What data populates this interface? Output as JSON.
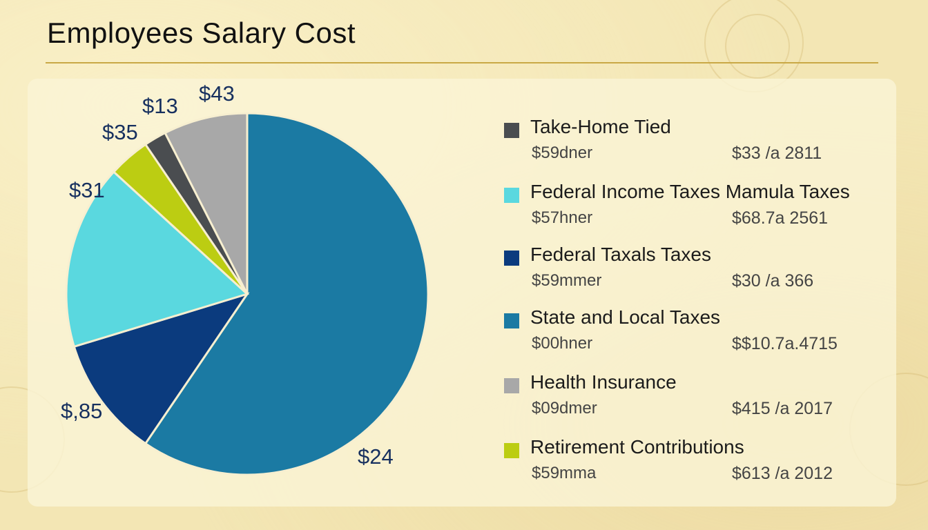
{
  "chart_data": {
    "type": "pie",
    "title": "Employees Salary Cost",
    "slices": [
      {
        "label": "$24",
        "value": 59.5,
        "color": "#1b7aa3"
      },
      {
        "label": "$,85",
        "value": 10.8,
        "color": "#0b3b7e"
      },
      {
        "label": "$31",
        "value": 16.5,
        "color": "#5ad8df"
      },
      {
        "label": "$35",
        "value": 3.7,
        "color": "#bccd12"
      },
      {
        "label": "$13",
        "value": 2.0,
        "color": "#4a4d50"
      },
      {
        "label": "$43",
        "value": 7.5,
        "color": "#a8a8a8"
      }
    ],
    "legend": {
      "position": "right",
      "items": [
        {
          "name": "Take-Home Tied",
          "value1": "$59dner",
          "value2": "$33 /a 2811",
          "color": "#4a4d50"
        },
        {
          "name": "Federal Income Taxes Mamula Taxes",
          "value1": "$57hner",
          "value2": "$68.7a 2561",
          "color": "#5ad8df"
        },
        {
          "name": "Federal Taxals Taxes",
          "value1": "$59mmer",
          "value2": "$30 /a 366",
          "color": "#0b3b7e"
        },
        {
          "name": "State and Local Taxes",
          "value1": "$00hner",
          "value2": "$$10.7a.4715",
          "color": "#1b7aa3"
        },
        {
          "name": "Health Insurance",
          "value1": "$09dmer",
          "value2": "$415 /a 2017",
          "color": "#a8a8a8"
        },
        {
          "name": "Retirement Contributions",
          "value1": "$59mma",
          "value2": "$613 /a 2012",
          "color": "#bccd12"
        }
      ]
    }
  }
}
